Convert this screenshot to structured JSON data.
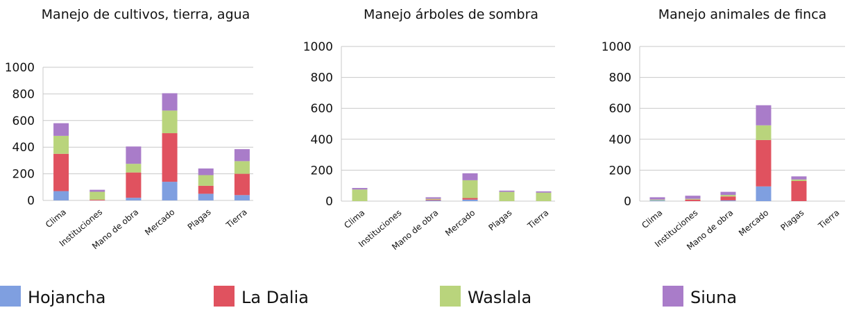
{
  "legend": [
    {
      "name": "Hojancha",
      "color": "#7f9fe0"
    },
    {
      "name": "La Dalia",
      "color": "#e0525f"
    },
    {
      "name": "Waslala",
      "color": "#b9d47c"
    },
    {
      "name": "Siuna",
      "color": "#a97cc9"
    }
  ],
  "chart_data": [
    {
      "type": "bar",
      "stacked": true,
      "title": "Manejo de cultivos, tierra, agua",
      "categories": [
        "Clima",
        "Instituciones",
        "Mano de obra",
        "Mercado",
        "Plagas",
        "Tierra"
      ],
      "series": [
        {
          "values": [
            70,
            0,
            20,
            140,
            50,
            40
          ]
        },
        {
          "values": [
            280,
            5,
            190,
            365,
            60,
            160
          ]
        },
        {
          "values": [
            135,
            60,
            65,
            170,
            80,
            95
          ]
        },
        {
          "values": [
            95,
            15,
            130,
            130,
            50,
            90
          ]
        }
      ],
      "ylim": [
        0,
        1000
      ],
      "yticks": [
        0,
        200,
        400,
        600,
        800,
        1000
      ],
      "grid": true
    },
    {
      "type": "bar",
      "stacked": true,
      "title": "Manejo árboles de sombra",
      "categories": [
        "Clima",
        "Instituciones",
        "Mano de obra",
        "Mercado",
        "Plagas",
        "Tierra"
      ],
      "series": [
        {
          "values": [
            0,
            0,
            5,
            10,
            0,
            0
          ]
        },
        {
          "values": [
            0,
            0,
            5,
            10,
            0,
            0
          ]
        },
        {
          "values": [
            75,
            0,
            5,
            115,
            60,
            55
          ]
        },
        {
          "values": [
            10,
            0,
            10,
            45,
            8,
            8
          ]
        }
      ],
      "ylim": [
        0,
        1000
      ],
      "yticks": [
        0,
        200,
        400,
        600,
        800,
        1000
      ],
      "grid": true
    },
    {
      "type": "bar",
      "stacked": true,
      "title": "Manejo animales de finca",
      "categories": [
        "Clima",
        "Instituciones",
        "Mano de obra",
        "Mercado",
        "Plagas",
        "Tierra"
      ],
      "series": [
        {
          "values": [
            5,
            0,
            5,
            95,
            0,
            0
          ]
        },
        {
          "values": [
            0,
            10,
            25,
            300,
            130,
            0
          ]
        },
        {
          "values": [
            5,
            5,
            10,
            95,
            10,
            0
          ]
        },
        {
          "values": [
            15,
            20,
            20,
            130,
            20,
            0
          ]
        }
      ],
      "ylim": [
        0,
        1000
      ],
      "yticks": [
        0,
        200,
        400,
        600,
        800,
        1000
      ],
      "grid": true
    }
  ]
}
